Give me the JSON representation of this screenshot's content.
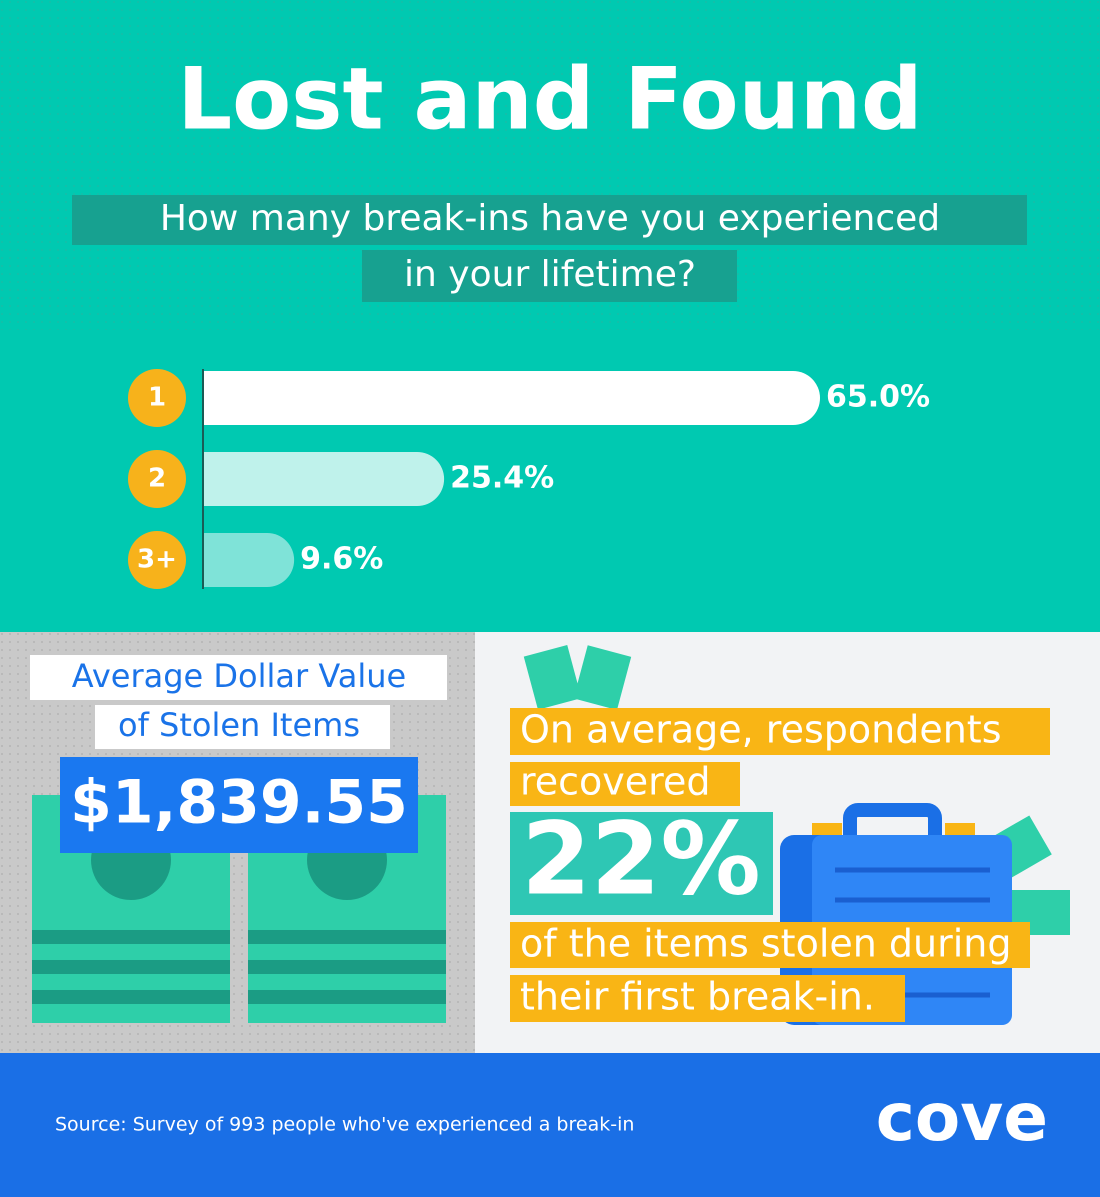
{
  "title": "Lost and Found",
  "question": [
    "How many break-ins have you experienced",
    "in your lifetime?"
  ],
  "chart_data": {
    "type": "bar",
    "orientation": "horizontal",
    "categories": [
      "1",
      "2",
      "3+"
    ],
    "values": [
      65.0,
      25.4,
      9.6
    ],
    "value_labels": [
      "65.0%",
      "25.4%",
      "9.6%"
    ],
    "colors": [
      "#ffffff",
      "#bff2eb",
      "#7fe3d8"
    ]
  },
  "dollar_panel": {
    "label": [
      "Average Dollar Value",
      "of Stolen Items"
    ],
    "value": "$1,839.55"
  },
  "recovery_panel": {
    "lines_before": [
      "On average, respondents",
      "recovered"
    ],
    "value": "22%",
    "lines_after": [
      "of the items stolen during",
      "their first break-in."
    ]
  },
  "footer": {
    "source": "Source: Survey of 993 people who've experienced a break-in",
    "logo": "cove"
  }
}
